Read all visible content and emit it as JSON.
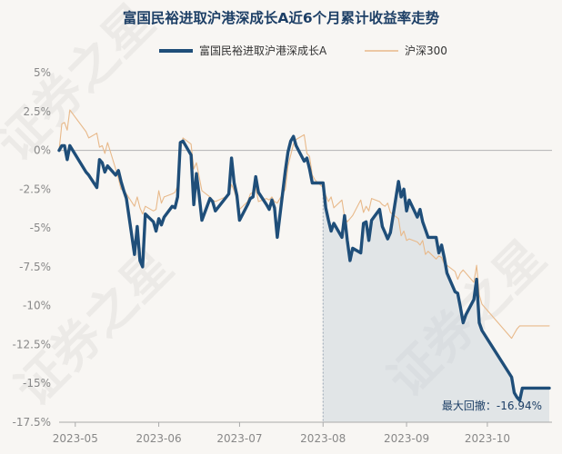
{
  "chart_data": {
    "type": "line",
    "title": "富国民裕进取沪港深成长A近6个月累计收益率走势",
    "xlabel": "",
    "ylabel": "",
    "ylim": [
      -17.5,
      5
    ],
    "yticks": [
      5,
      2.5,
      0,
      -2.5,
      -5,
      -7.5,
      -10,
      -12.5,
      -15,
      -17.5
    ],
    "ytick_labels": [
      "5%",
      "2.5%",
      "0%",
      "-2.5%",
      "-5%",
      "-7.5%",
      "-10%",
      "-12.5%",
      "-15%",
      "-17.5%"
    ],
    "xticks": [
      "2023-04-30",
      "2023-05-31",
      "2023-06-30",
      "2023-07-31",
      "2023-08-31",
      "2023-09-30"
    ],
    "xtick_labels": [
      "2023-05",
      "2023-06",
      "2023-07",
      "2023-08",
      "2023-09",
      "2023-10"
    ],
    "xlim": [
      "2023-04-24",
      "2023-10-24"
    ],
    "legend_position": "top",
    "grid": false,
    "series": [
      {
        "name": "富国民裕进取沪港深成长A",
        "color": "#1f4e79",
        "x": [
          "2023-04-24",
          "2023-04-25",
          "2023-04-26",
          "2023-04-27",
          "2023-04-28",
          "2023-05-04",
          "2023-05-05",
          "2023-05-08",
          "2023-05-09",
          "2023-05-10",
          "2023-05-11",
          "2023-05-12",
          "2023-05-15",
          "2023-05-16",
          "2023-05-17",
          "2023-05-18",
          "2023-05-19",
          "2023-05-22",
          "2023-05-23",
          "2023-05-24",
          "2023-05-25",
          "2023-05-26",
          "2023-05-29",
          "2023-05-30",
          "2023-05-31",
          "2023-06-01",
          "2023-06-02",
          "2023-06-05",
          "2023-06-06",
          "2023-06-07",
          "2023-06-08",
          "2023-06-09",
          "2023-06-12",
          "2023-06-13",
          "2023-06-14",
          "2023-06-15",
          "2023-06-16",
          "2023-06-19",
          "2023-06-20",
          "2023-06-21",
          "2023-06-26",
          "2023-06-27",
          "2023-06-28",
          "2023-06-29",
          "2023-06-30",
          "2023-07-03",
          "2023-07-04",
          "2023-07-05",
          "2023-07-06",
          "2023-07-07",
          "2023-07-10",
          "2023-07-11",
          "2023-07-12",
          "2023-07-13",
          "2023-07-14",
          "2023-07-17",
          "2023-07-18",
          "2023-07-19",
          "2023-07-20",
          "2023-07-21",
          "2023-07-24",
          "2023-07-25",
          "2023-07-26",
          "2023-07-27",
          "2023-07-28",
          "2023-07-31",
          "2023-08-01",
          "2023-08-02",
          "2023-08-03",
          "2023-08-04",
          "2023-08-07",
          "2023-08-08",
          "2023-08-09",
          "2023-08-10",
          "2023-08-11",
          "2023-08-14",
          "2023-08-15",
          "2023-08-16",
          "2023-08-17",
          "2023-08-18",
          "2023-08-21",
          "2023-08-22",
          "2023-08-23",
          "2023-08-24",
          "2023-08-25",
          "2023-08-28",
          "2023-08-29",
          "2023-08-30",
          "2023-08-31",
          "2023-09-01",
          "2023-09-04",
          "2023-09-05",
          "2023-09-06",
          "2023-09-07",
          "2023-09-08",
          "2023-09-11",
          "2023-09-12",
          "2023-09-13",
          "2023-09-14",
          "2023-09-15",
          "2023-09-18",
          "2023-09-19",
          "2023-09-20",
          "2023-09-21",
          "2023-09-22",
          "2023-09-25",
          "2023-09-26",
          "2023-09-27",
          "2023-09-28",
          "2023-10-09",
          "2023-10-10",
          "2023-10-11",
          "2023-10-12",
          "2023-10-13",
          "2023-10-16",
          "2023-10-17",
          "2023-10-18",
          "2023-10-19",
          "2023-10-20",
          "2023-10-23"
        ],
        "values": [
          0.0,
          0.3,
          0.3,
          -0.6,
          0.3,
          -1.4,
          -1.6,
          -2.4,
          -0.6,
          -0.8,
          -1.4,
          -1.0,
          -1.6,
          -1.3,
          -2.0,
          -2.6,
          -3.1,
          -6.7,
          -4.9,
          -7.1,
          -7.5,
          -4.1,
          -4.6,
          -5.2,
          -4.4,
          -4.8,
          -4.3,
          -3.6,
          -3.7,
          -3.0,
          0.5,
          0.6,
          -0.3,
          -3.5,
          -1.5,
          -2.9,
          -4.5,
          -3.1,
          -3.3,
          -3.9,
          -2.8,
          -0.5,
          -2.1,
          -2.9,
          -4.5,
          -3.5,
          -3.1,
          -3.0,
          -1.7,
          -2.7,
          -3.5,
          -3.8,
          -3.2,
          -3.7,
          -5.6,
          -1.3,
          -0.1,
          0.6,
          0.9,
          0.3,
          -0.7,
          -0.5,
          -1.2,
          -2.1,
          -2.1,
          -2.1,
          -3.7,
          -4.5,
          -5.2,
          -4.7,
          -5.6,
          -4.2,
          -5.8,
          -7.1,
          -6.3,
          -6.6,
          -4.7,
          -4.6,
          -5.8,
          -4.5,
          -3.8,
          -4.9,
          -5.3,
          -5.7,
          -5.3,
          -2.0,
          -3.0,
          -2.5,
          -3.9,
          -3.2,
          -4.3,
          -3.8,
          -4.6,
          -5.1,
          -5.6,
          -5.6,
          -6.6,
          -6.1,
          -6.9,
          -7.9,
          -9.1,
          -9.2,
          -10.1,
          -11.1,
          -10.6,
          -9.6,
          -8.3,
          -11.1,
          -11.6,
          -14.6,
          -15.6,
          -15.9,
          -16.1,
          -15.3,
          -15.3,
          -15.3,
          -15.3,
          -15.3,
          -15.3,
          -15.3
        ]
      },
      {
        "name": "沪深300",
        "color": "#e8b98a",
        "x": [
          "2023-04-24",
          "2023-04-25",
          "2023-04-26",
          "2023-04-27",
          "2023-04-28",
          "2023-05-04",
          "2023-05-05",
          "2023-05-08",
          "2023-05-09",
          "2023-05-10",
          "2023-05-11",
          "2023-05-12",
          "2023-05-15",
          "2023-05-16",
          "2023-05-17",
          "2023-05-18",
          "2023-05-19",
          "2023-05-22",
          "2023-05-23",
          "2023-05-24",
          "2023-05-25",
          "2023-05-26",
          "2023-05-29",
          "2023-05-30",
          "2023-05-31",
          "2023-06-01",
          "2023-06-02",
          "2023-06-05",
          "2023-06-06",
          "2023-06-07",
          "2023-06-08",
          "2023-06-09",
          "2023-06-12",
          "2023-06-13",
          "2023-06-14",
          "2023-06-15",
          "2023-06-16",
          "2023-06-19",
          "2023-06-20",
          "2023-06-21",
          "2023-06-26",
          "2023-06-27",
          "2023-06-28",
          "2023-06-29",
          "2023-06-30",
          "2023-07-03",
          "2023-07-04",
          "2023-07-05",
          "2023-07-06",
          "2023-07-07",
          "2023-07-10",
          "2023-07-11",
          "2023-07-12",
          "2023-07-13",
          "2023-07-14",
          "2023-07-17",
          "2023-07-18",
          "2023-07-19",
          "2023-07-20",
          "2023-07-21",
          "2023-07-24",
          "2023-07-25",
          "2023-07-26",
          "2023-07-27",
          "2023-07-28",
          "2023-07-31",
          "2023-08-01",
          "2023-08-02",
          "2023-08-03",
          "2023-08-04",
          "2023-08-07",
          "2023-08-08",
          "2023-08-09",
          "2023-08-10",
          "2023-08-11",
          "2023-08-14",
          "2023-08-15",
          "2023-08-16",
          "2023-08-17",
          "2023-08-18",
          "2023-08-21",
          "2023-08-22",
          "2023-08-23",
          "2023-08-24",
          "2023-08-25",
          "2023-08-28",
          "2023-08-29",
          "2023-08-30",
          "2023-08-31",
          "2023-09-01",
          "2023-09-04",
          "2023-09-05",
          "2023-09-06",
          "2023-09-07",
          "2023-09-08",
          "2023-09-11",
          "2023-09-12",
          "2023-09-13",
          "2023-09-14",
          "2023-09-15",
          "2023-09-18",
          "2023-09-19",
          "2023-09-20",
          "2023-09-21",
          "2023-09-22",
          "2023-09-25",
          "2023-09-26",
          "2023-09-27",
          "2023-09-28",
          "2023-10-09",
          "2023-10-10",
          "2023-10-11",
          "2023-10-12",
          "2023-10-13",
          "2023-10-16",
          "2023-10-17",
          "2023-10-18",
          "2023-10-19",
          "2023-10-20",
          "2023-10-23"
        ],
        "values": [
          0.0,
          1.7,
          1.8,
          1.3,
          2.6,
          1.2,
          0.8,
          1.1,
          0.2,
          0.3,
          -0.2,
          0.5,
          -1.2,
          -1.8,
          -2.5,
          -2.6,
          -2.8,
          -3.6,
          -3.0,
          -3.7,
          -4.1,
          -3.6,
          -3.9,
          -3.8,
          -2.6,
          -3.4,
          -3.0,
          -2.8,
          -2.7,
          -2.3,
          0.0,
          0.8,
          0.4,
          -1.2,
          -0.8,
          -1.7,
          -2.6,
          -3.0,
          -3.2,
          -3.3,
          -2.9,
          -2.2,
          -2.6,
          -3.2,
          -3.8,
          -3.3,
          -2.8,
          -2.7,
          -2.4,
          -3.3,
          -3.1,
          -3.2,
          -3.0,
          -3.3,
          -3.4,
          -2.5,
          -1.0,
          -0.3,
          0.4,
          0.7,
          1.0,
          -0.2,
          -0.4,
          -1.6,
          -1.9,
          -2.4,
          -2.9,
          -3.3,
          -3.0,
          -3.7,
          -3.2,
          -4.3,
          -4.6,
          -4.4,
          -4.2,
          -3.2,
          -4.0,
          -3.6,
          -3.9,
          -3.1,
          -3.3,
          -3.5,
          -3.6,
          -3.4,
          -4.0,
          -4.4,
          -5.5,
          -5.2,
          -5.8,
          -5.7,
          -5.9,
          -6.1,
          -5.8,
          -6.7,
          -6.5,
          -7.0,
          -6.8,
          -6.9,
          -7.3,
          -7.4,
          -7.8,
          -8.3,
          -7.9,
          -7.7,
          -7.9,
          -8.5,
          -7.4,
          -9.3,
          -9.9,
          -12.1,
          -11.8,
          -11.5,
          -11.3,
          -11.3,
          -11.3,
          -11.3,
          -11.3,
          -11.3,
          -11.3,
          -11.3
        ]
      }
    ],
    "drawdown_shade": {
      "start": "2023-07-31",
      "end": "2023-10-23",
      "label": "最大回撤：-16.94%"
    }
  },
  "watermark": [
    "证券之星",
    "证券之星",
    "证券之星"
  ]
}
